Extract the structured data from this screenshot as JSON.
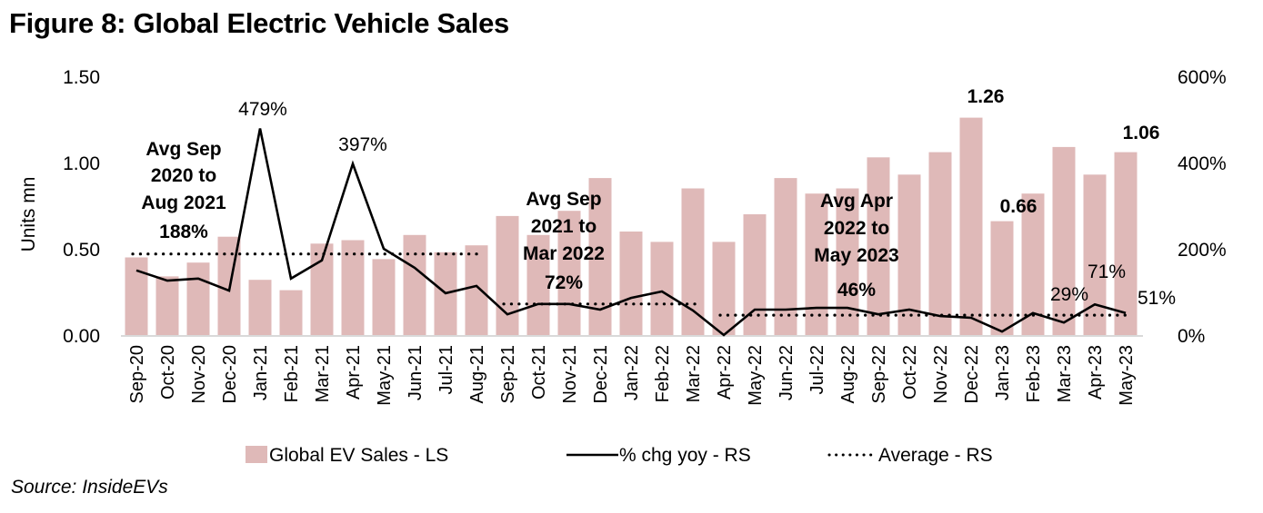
{
  "title": "Figure 8: Global Electric Vehicle Sales",
  "source": "Source: InsideEVs",
  "colors": {
    "bar": "#dfb9b8",
    "line": "#000000",
    "axis": "#d9d9d9"
  },
  "chart_data": {
    "type": "bar",
    "title": "Figure 8: Global Electric Vehicle Sales",
    "xlabel": "",
    "ylabel": "Units mn",
    "ylim": [
      0,
      1.5
    ],
    "y2lim": [
      0,
      600
    ],
    "yticks": [
      "0.00",
      "0.50",
      "1.00",
      "1.50"
    ],
    "y2ticks": [
      "0%",
      "200%",
      "400%",
      "600%"
    ],
    "grid": false,
    "legend_position": "bottom",
    "categories": [
      "Sep-20",
      "Oct-20",
      "Nov-20",
      "Dec-20",
      "Jan-21",
      "Feb-21",
      "Mar-21",
      "Apr-21",
      "May-21",
      "Jun-21",
      "Jul-21",
      "Aug-21",
      "Sep-21",
      "Oct-21",
      "Nov-21",
      "Dec-21",
      "Jan-22",
      "Feb-22",
      "Mar-22",
      "Apr-22",
      "May-22",
      "Jun-22",
      "Jul-22",
      "Aug-22",
      "Sep-22",
      "Oct-22",
      "Nov-22",
      "Dec-22",
      "Jan-23",
      "Feb-23",
      "Mar-23",
      "Apr-23",
      "May-23"
    ],
    "series": [
      {
        "name": "Global EV Sales - LS",
        "type": "bar",
        "axis": "left",
        "values": [
          0.45,
          0.34,
          0.42,
          0.57,
          0.32,
          0.26,
          0.53,
          0.55,
          0.44,
          0.58,
          0.48,
          0.52,
          0.69,
          0.58,
          0.72,
          0.91,
          0.6,
          0.54,
          0.85,
          0.54,
          0.7,
          0.91,
          0.82,
          0.85,
          1.03,
          0.93,
          1.06,
          1.26,
          0.66,
          0.82,
          1.09,
          0.93,
          1.06
        ]
      },
      {
        "name": "% chg yoy - RS",
        "type": "line",
        "axis": "right",
        "values": [
          150,
          126,
          131,
          103,
          479,
          131,
          173,
          397,
          200,
          156,
          97,
          114,
          48,
          72,
          72,
          59,
          86,
          101,
          57,
          0,
          59,
          59,
          63,
          63,
          48,
          59,
          44,
          40,
          8,
          51,
          29,
          71,
          51
        ]
      },
      {
        "name": "Average - RS",
        "type": "dotted",
        "axis": "right",
        "segments": [
          {
            "from": "Sep-20",
            "to": "Aug-21",
            "value": 188
          },
          {
            "from": "Sep-21",
            "to": "Mar-22",
            "value": 72
          },
          {
            "from": "Apr-22",
            "to": "May-23",
            "value": 46
          }
        ]
      }
    ],
    "annotations": [
      {
        "lines": [
          "Avg Sep",
          "2020 to",
          "Aug 2021",
          "188%"
        ],
        "bold": true
      },
      {
        "lines": [
          "Avg Sep",
          "2021 to",
          "Mar 2022",
          "72%"
        ],
        "bold": true
      },
      {
        "lines": [
          "Avg Apr",
          "2022 to",
          "May 2023",
          "46%"
        ],
        "bold": true
      },
      {
        "text": "479%",
        "bold": false,
        "at": "Jan-21"
      },
      {
        "text": "397%",
        "bold": false,
        "at": "Apr-21"
      },
      {
        "text": "1.26",
        "bold": true,
        "at": "Dec-22"
      },
      {
        "text": "0.66",
        "bold": true,
        "at": "Jan-23"
      },
      {
        "text": "1.06",
        "bold": true,
        "at": "May-23"
      },
      {
        "text": "29%",
        "bold": false,
        "at": "Mar-23"
      },
      {
        "text": "71%",
        "bold": false,
        "at": "Apr-23"
      },
      {
        "text": "51%",
        "bold": false,
        "at": "May-23"
      }
    ]
  }
}
